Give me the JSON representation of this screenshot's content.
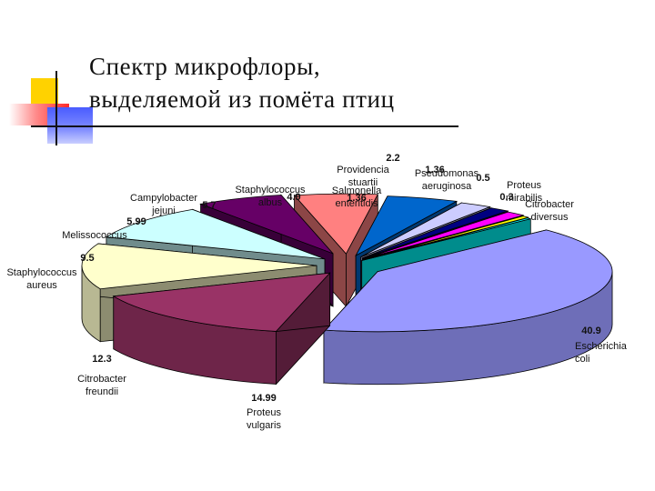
{
  "title": [
    "Спектр микрофлоры,",
    "выделяемой из помёта птиц"
  ],
  "colors": {
    "title_text": "#111111",
    "decor_yellow": "#ffd200",
    "decor_red": "#ff2a2a",
    "decor_blue": "#4a5cff"
  },
  "chart_data": {
    "type": "pie",
    "style": "3d-exploded",
    "title": "",
    "legend": "none",
    "slices": [
      {
        "label": [
          "Escherichia",
          "coli"
        ],
        "value": 40.9,
        "value_text": "40.9",
        "color": "#9999ff"
      },
      {
        "label": [
          "Proteus",
          "vulgaris"
        ],
        "value": 14.99,
        "value_text": "14.99",
        "color": "#993366"
      },
      {
        "label": [
          "Citrobacter",
          "freundii"
        ],
        "value": 12.3,
        "value_text": "12.3",
        "color": "#ffffcc"
      },
      {
        "label": [
          "Staphylococcus",
          "aureus"
        ],
        "value": 9.5,
        "value_text": "9.5",
        "color": "#ccffff"
      },
      {
        "label": [
          "Melissococcus"
        ],
        "value": 5.99,
        "value_text": "5.99",
        "color": "#660066"
      },
      {
        "label": [
          "Campylobacter",
          "jejuni"
        ],
        "value": 5.7,
        "value_text": "5.7",
        "color": "#ff8080"
      },
      {
        "label": [
          "Staphylococcus",
          "albus"
        ],
        "value": 4.9,
        "value_text": "4.9",
        "color": "#0066cc"
      },
      {
        "label": [
          "Providencia",
          "stuartii"
        ],
        "value": 2.2,
        "value_text": "2.2",
        "color": "#ccccff"
      },
      {
        "label": [
          "Salmonella",
          "enteritidis"
        ],
        "value": 1.36,
        "value_text": "1.36",
        "color": "#000080"
      },
      {
        "label": [
          "Pseudomonas",
          "aeruginosa"
        ],
        "value": 1.36,
        "value_text": "1.36",
        "color": "#ff00ff"
      },
      {
        "label": [
          "Proteus",
          "mirabilis"
        ],
        "value": 0.5,
        "value_text": "0.5",
        "color": "#ffff00"
      },
      {
        "label": [
          "Citrobacter",
          "diversus"
        ],
        "value": 0.3,
        "value_text": "0.3",
        "color": "#00ffff"
      }
    ]
  }
}
